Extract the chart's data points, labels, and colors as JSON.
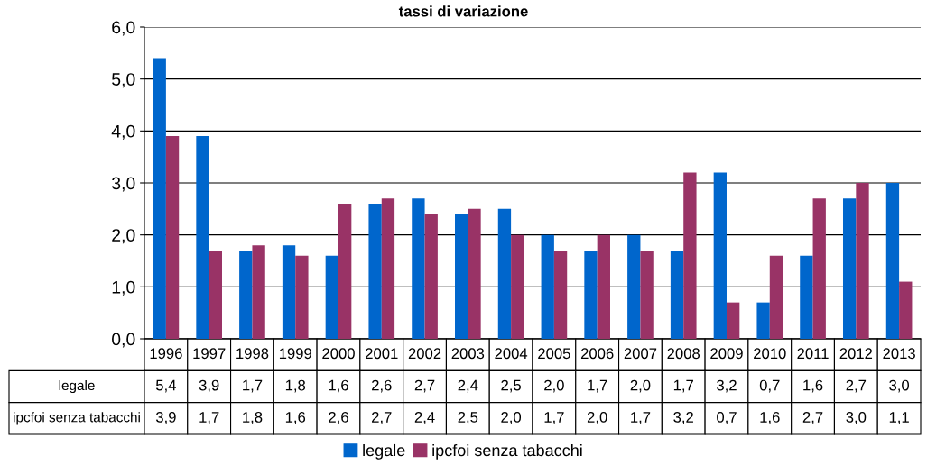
{
  "chart_data": {
    "type": "bar",
    "title": "tassi di variazione",
    "categories": [
      "1996",
      "1997",
      "1998",
      "1999",
      "2000",
      "2001",
      "2002",
      "2003",
      "2004",
      "2005",
      "2006",
      "2007",
      "2008",
      "2009",
      "2010",
      "2011",
      "2012",
      "2013"
    ],
    "series": [
      {
        "name": "legale",
        "color": "#0066cc",
        "values": [
          5.4,
          3.9,
          1.7,
          1.8,
          1.6,
          2.6,
          2.7,
          2.4,
          2.5,
          2.0,
          1.7,
          2.0,
          1.7,
          3.2,
          0.7,
          1.6,
          2.7,
          3.0
        ],
        "value_labels": [
          "5,4",
          "3,9",
          "1,7",
          "1,8",
          "1,6",
          "2,6",
          "2,7",
          "2,4",
          "2,5",
          "2,0",
          "1,7",
          "2,0",
          "1,7",
          "3,2",
          "0,7",
          "1,6",
          "2,7",
          "3,0"
        ]
      },
      {
        "name": "ipcfoi senza tabacchi",
        "color": "#993366",
        "values": [
          3.9,
          1.7,
          1.8,
          1.6,
          2.6,
          2.7,
          2.4,
          2.5,
          2.0,
          1.7,
          2.0,
          1.7,
          3.2,
          0.7,
          1.6,
          2.7,
          3.0,
          1.1
        ],
        "value_labels": [
          "3,9",
          "1,7",
          "1,8",
          "1,6",
          "2,6",
          "2,7",
          "2,4",
          "2,5",
          "2,0",
          "1,7",
          "2,0",
          "1,7",
          "3,2",
          "0,7",
          "1,6",
          "2,7",
          "3,0",
          "1,1"
        ]
      }
    ],
    "ylim": [
      0,
      6
    ],
    "yticks": [
      {
        "value": 0,
        "label": "0,0"
      },
      {
        "value": 1,
        "label": "1,0"
      },
      {
        "value": 2,
        "label": "2,0"
      },
      {
        "value": 3,
        "label": "3,0"
      },
      {
        "value": 4,
        "label": "4,0"
      },
      {
        "value": 5,
        "label": "5,0"
      },
      {
        "value": 6,
        "label": "6,0"
      }
    ],
    "grid": "y",
    "legend": "bottom"
  }
}
